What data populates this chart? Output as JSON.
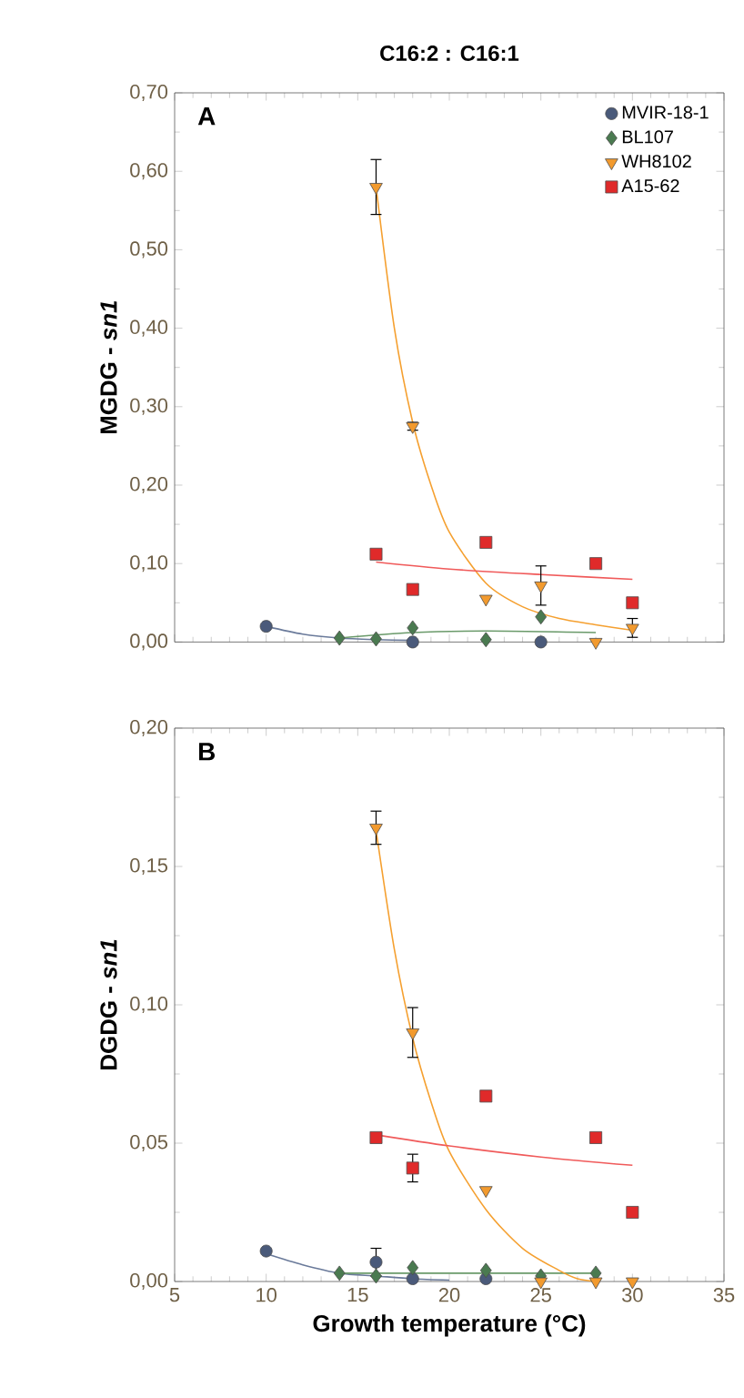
{
  "chart_data": [
    {
      "type": "scatter",
      "title": "C16:2 : C16:1",
      "ylabel": "MGDG - *sn1*",
      "annotations": [
        "A"
      ],
      "legend": "top right",
      "tick_labels": "y",
      "xlim": [
        5,
        35
      ],
      "xticks": [
        5,
        10,
        15,
        20,
        25,
        30,
        35
      ],
      "ylim": [
        0,
        0.7
      ],
      "yticks": [
        {
          "value": 0,
          "label": "0,00"
        },
        {
          "value": 0.1,
          "label": "0,10"
        },
        {
          "value": 0.2,
          "label": "0,20"
        },
        {
          "value": 0.3,
          "label": "0,30"
        },
        {
          "value": 0.4,
          "label": "0,40"
        },
        {
          "value": 0.5,
          "label": "0,50"
        },
        {
          "value": 0.6,
          "label": "0,60"
        },
        {
          "value": 0.7,
          "label": "0,70"
        }
      ],
      "series": [
        {
          "type": "line",
          "color": "#6a7a9a",
          "x": [
            10,
            12,
            14,
            16,
            18
          ],
          "values": [
            0.02,
            0.01,
            0.005,
            0.003,
            0.002
          ]
        },
        {
          "type": "line",
          "color": "#6a9a6a",
          "x": [
            14,
            18,
            22,
            28
          ],
          "values": [
            0.005,
            0.012,
            0.014,
            0.012
          ]
        },
        {
          "type": "line",
          "color": "#f5a030",
          "x": [
            16,
            17,
            18,
            19,
            20,
            22,
            24,
            26,
            28,
            30
          ],
          "values": [
            0.58,
            0.4,
            0.28,
            0.2,
            0.14,
            0.075,
            0.045,
            0.03,
            0.022,
            0.015
          ]
        },
        {
          "type": "line",
          "color": "#f05a5a",
          "x": [
            16,
            20,
            25,
            30
          ],
          "values": [
            0.102,
            0.093,
            0.086,
            0.08
          ]
        },
        {
          "name": "MVIR-18-1",
          "marker": "circle",
          "color": "#4a5a7a",
          "x": [
            10,
            18,
            25
          ],
          "values": [
            0.02,
            0.0,
            0.0
          ]
        },
        {
          "name": "BL107",
          "marker": "diamond",
          "color": "#4a7a50",
          "x": [
            14,
            16,
            18,
            22,
            25
          ],
          "values": [
            0.005,
            0.004,
            0.018,
            0.003,
            0.032
          ]
        },
        {
          "name": "WH8102",
          "marker": "triangle",
          "color": "#f29a2e",
          "x": [
            16,
            18,
            22,
            25,
            28,
            30
          ],
          "values": [
            0.58,
            0.275,
            0.055,
            0.072,
            0.0,
            0.018
          ],
          "errors": [
            0.035,
            0.005,
            null,
            0.025,
            null,
            0.012
          ]
        },
        {
          "name": "A15-62",
          "marker": "square",
          "color": "#e02a2a",
          "x": [
            16,
            18,
            22,
            28,
            30
          ],
          "values": [
            0.112,
            0.067,
            0.127,
            0.1,
            0.05
          ]
        }
      ]
    },
    {
      "type": "scatter",
      "xlabel": "Growth temperature (°C)",
      "ylabel": "DGDG - *sn1*",
      "annotations": [
        "B"
      ],
      "xlim": [
        5,
        35
      ],
      "xticks": [
        5,
        10,
        15,
        20,
        25,
        30,
        35
      ],
      "ylim": [
        0,
        0.2
      ],
      "yticks": [
        {
          "value": 0,
          "label": "0,00"
        },
        {
          "value": 0.05,
          "label": "0,05"
        },
        {
          "value": 0.1,
          "label": "0,10"
        },
        {
          "value": 0.15,
          "label": "0,15"
        },
        {
          "value": 0.2,
          "label": "0,20"
        }
      ],
      "series": [
        {
          "type": "line",
          "color": "#6a7a9a",
          "x": [
            10,
            12,
            14,
            16,
            18,
            20
          ],
          "values": [
            0.01,
            0.006,
            0.003,
            0.002,
            0.001,
            0.0005
          ]
        },
        {
          "type": "line",
          "color": "#6a9a6a",
          "x": [
            14,
            28
          ],
          "values": [
            0.003,
            0.003
          ]
        },
        {
          "type": "line",
          "color": "#f5a030",
          "x": [
            16,
            17,
            18,
            19,
            20,
            22,
            24,
            26,
            27,
            28
          ],
          "values": [
            0.163,
            0.12,
            0.088,
            0.065,
            0.047,
            0.026,
            0.012,
            0.004,
            0.001,
            0.0
          ]
        },
        {
          "type": "line",
          "color": "#f05a5a",
          "x": [
            16,
            20,
            25,
            30
          ],
          "values": [
            0.053,
            0.049,
            0.045,
            0.042
          ]
        },
        {
          "marker": "circle",
          "color": "#4a5a7a",
          "x": [
            10,
            16,
            18,
            22
          ],
          "values": [
            0.011,
            0.007,
            0.001,
            0.001
          ],
          "errors": [
            null,
            0.005,
            null,
            null
          ]
        },
        {
          "marker": "diamond",
          "color": "#4a7a50",
          "x": [
            14,
            16,
            18,
            22,
            25,
            28
          ],
          "values": [
            0.003,
            0.002,
            0.005,
            0.004,
            0.002,
            0.003
          ]
        },
        {
          "marker": "triangle",
          "color": "#f29a2e",
          "x": [
            16,
            18,
            22,
            25,
            28,
            30
          ],
          "values": [
            0.164,
            0.09,
            0.033,
            0.0,
            0.0,
            0.0
          ],
          "errors": [
            0.006,
            0.009,
            null,
            null,
            null,
            null
          ]
        },
        {
          "marker": "square",
          "color": "#e02a2a",
          "x": [
            16,
            18,
            22,
            28,
            30
          ],
          "values": [
            0.052,
            0.041,
            0.067,
            0.052,
            0.025
          ],
          "errors": [
            null,
            0.005,
            null,
            null,
            null
          ]
        }
      ]
    }
  ]
}
